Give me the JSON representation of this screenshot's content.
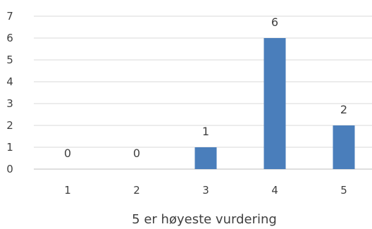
{
  "chart_data": {
    "type": "bar",
    "categories": [
      "1",
      "2",
      "3",
      "4",
      "5"
    ],
    "values": [
      0,
      0,
      1,
      6,
      2
    ],
    "data_labels": [
      "0",
      "0",
      "1",
      "6",
      "2"
    ],
    "title": "",
    "xlabel": "5 er høyeste vurdering",
    "ylabel": "",
    "ylim": [
      0,
      7
    ],
    "yticks": [
      "0",
      "1",
      "2",
      "3",
      "4",
      "5",
      "6",
      "7"
    ],
    "grid": true,
    "legend": "none",
    "bar_color": "#4a7ebb"
  }
}
